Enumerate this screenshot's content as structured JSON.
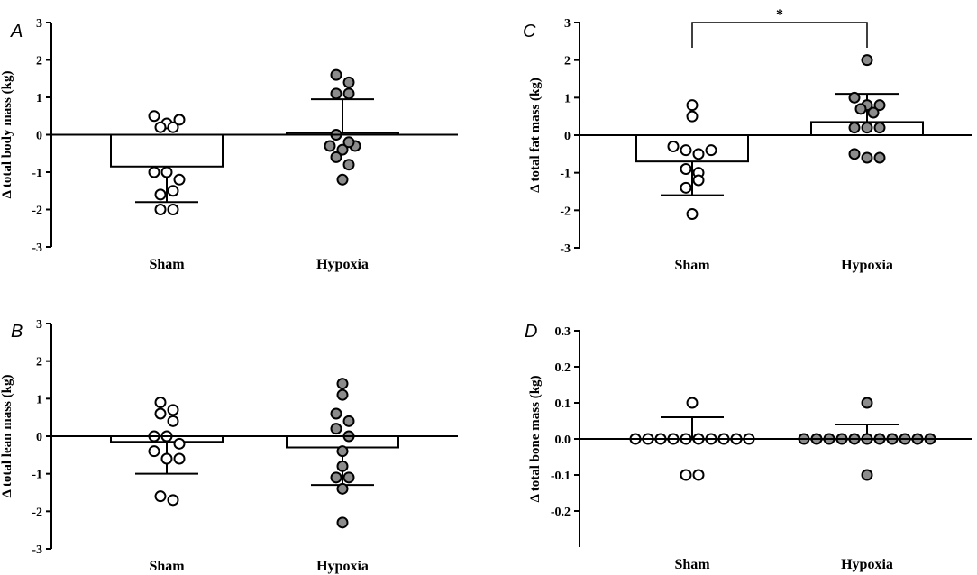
{
  "colors": {
    "sham_fill": "#ffffff",
    "hypoxia_fill": "#8c8c8c",
    "stroke": "#000000"
  },
  "chart_data": [
    {
      "panel": "A",
      "type": "bar",
      "ylabel": "Δ total body mass (kg)",
      "categories": [
        "Sham",
        "Hypoxia"
      ],
      "ylim": [
        -3,
        3
      ],
      "yticks": [
        3,
        2,
        1,
        0,
        -1,
        -2,
        -3
      ],
      "ytick_labels": [
        "3",
        "2",
        "1",
        "0",
        "-1",
        "-2",
        "-3"
      ],
      "means": [
        -0.85,
        0.05
      ],
      "error": [
        0.95,
        0.9
      ],
      "points": [
        [
          0.5,
          0.3,
          0.4,
          0.2,
          0.2,
          -1.0,
          -1.0,
          -1.2,
          -1.6,
          -1.5,
          -2.0,
          -2.0
        ],
        [
          1.6,
          1.4,
          1.1,
          1.1,
          0.0,
          -0.3,
          -0.4,
          -0.3,
          -0.2,
          -0.6,
          -0.8,
          -1.2
        ]
      ]
    },
    {
      "panel": "B",
      "type": "bar",
      "ylabel": "Δ total lean mass (kg)",
      "categories": [
        "Sham",
        "Hypoxia"
      ],
      "ylim": [
        -3,
        3
      ],
      "yticks": [
        3,
        2,
        1,
        0,
        -1,
        -2,
        -3
      ],
      "ytick_labels": [
        "3",
        "2",
        "1",
        "0",
        "-1",
        "-2",
        "-3"
      ],
      "means": [
        -0.15,
        -0.3
      ],
      "error": [
        0.85,
        1.0
      ],
      "points": [
        [
          0.9,
          0.7,
          0.6,
          0.4,
          0.0,
          0.0,
          -0.2,
          -0.4,
          -0.6,
          -0.6,
          -1.6,
          -1.7
        ],
        [
          1.4,
          1.1,
          0.6,
          0.4,
          0.2,
          0.0,
          -0.4,
          -0.8,
          -1.1,
          -1.1,
          -1.4,
          -2.3
        ]
      ]
    },
    {
      "panel": "C",
      "type": "bar",
      "ylabel": "Δ total fat mass (kg)",
      "categories": [
        "Sham",
        "Hypoxia"
      ],
      "ylim": [
        -3,
        3
      ],
      "yticks": [
        3,
        2,
        1,
        0,
        -1,
        -2,
        -3
      ],
      "ytick_labels": [
        "3",
        "2",
        "1",
        "0",
        "-1",
        "-2",
        "-3"
      ],
      "means": [
        -0.7,
        0.35
      ],
      "error": [
        0.9,
        0.75
      ],
      "significance": {
        "label": "*",
        "y": 3.0
      },
      "points": [
        [
          0.8,
          0.5,
          -0.3,
          -0.4,
          -0.5,
          -0.4,
          -0.9,
          -1.0,
          -1.4,
          -1.2,
          -2.1
        ],
        [
          2.0,
          1.0,
          0.8,
          0.8,
          0.7,
          0.6,
          0.2,
          0.2,
          0.2,
          -0.5,
          -0.6,
          -0.6
        ]
      ]
    },
    {
      "panel": "D",
      "type": "bar",
      "ylabel": "Δ total bone mass (kg)",
      "categories": [
        "Sham",
        "Hypoxia"
      ],
      "ylim": [
        -0.3,
        0.3
      ],
      "yticks": [
        0.3,
        0.2,
        0.1,
        0.0,
        -0.1,
        -0.2
      ],
      "ytick_labels": [
        "0.3",
        "0.2",
        "0.1",
        "0.0",
        "-0.1",
        "-0.2"
      ],
      "means": [
        0.0,
        0.0
      ],
      "error": [
        0.06,
        0.04
      ],
      "points": [
        [
          0.1,
          0.0,
          0.0,
          0.0,
          0.0,
          0.0,
          0.0,
          0.0,
          0.0,
          0.0,
          0.0,
          -0.1,
          -0.1
        ],
        [
          0.1,
          0.0,
          0.0,
          0.0,
          0.0,
          0.0,
          0.0,
          0.0,
          0.0,
          0.0,
          0.0,
          0.0,
          -0.1
        ]
      ]
    }
  ]
}
